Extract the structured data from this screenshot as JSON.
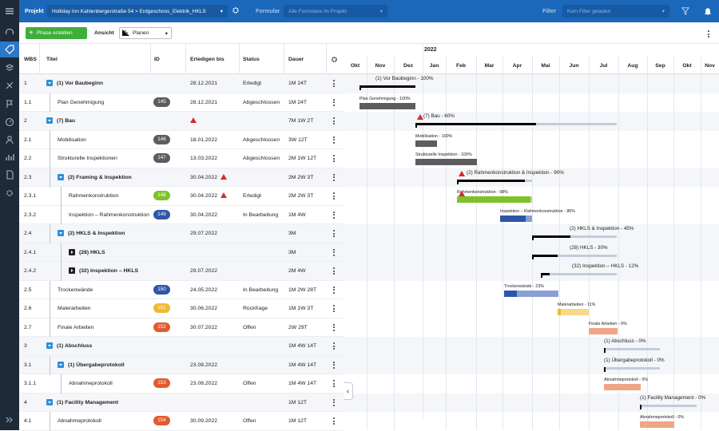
{
  "topbar": {
    "projekt_label": "Projekt",
    "projekt_value": "Holliday Inn Kahlenbergerstraße 54 > Erdgeschoss_Elektrik_HKLS",
    "formular_label": "Formular",
    "formular_placeholder": "Alle Formulare im Projekt",
    "filter_label": "Filter",
    "filter_placeholder": "Kein Filter geladen"
  },
  "toolbar": {
    "add_label": "Phase erstellen",
    "ansicht_label": "Ansicht",
    "view_value": "Planen"
  },
  "table": {
    "headers": {
      "wbs": "WBS",
      "titel": "Titel",
      "id": "ID",
      "erledigen": "Erledigen bis",
      "status": "Status",
      "dauer": "Dauer"
    },
    "rows": [
      {
        "wbs": "1",
        "title": "(1) Vor Baubeginn",
        "id": "",
        "date": "28.12.2021",
        "status": "Erledigt",
        "dauer": "1M 24T"
      },
      {
        "wbs": "1.1",
        "title": "Plan Genehmigung",
        "id": "145",
        "date": "28.12.2021",
        "status": "Abgeschlossen",
        "dauer": "1M 24T"
      },
      {
        "wbs": "2",
        "title": "(7) Bau",
        "id": "",
        "date": "",
        "status": "",
        "dauer": "7M 1W 2T"
      },
      {
        "wbs": "2.1",
        "title": "Mobilisation",
        "id": "146",
        "date": "18.01.2022",
        "status": "Abgeschlossen",
        "dauer": "3W 12T"
      },
      {
        "wbs": "2.2",
        "title": "Strukturelle Inspektionen",
        "id": "147",
        "date": "13.03.2022",
        "status": "Abgeschlossen",
        "dauer": "2M 1W 12T"
      },
      {
        "wbs": "2.3",
        "title": "(2) Framing & Inspektion",
        "id": "",
        "date": "30.04.2022",
        "status": "",
        "dauer": "2M 2W 3T"
      },
      {
        "wbs": "2.3.1",
        "title": "Rahmenkonstruktion",
        "id": "148",
        "date": "30.04.2022",
        "status": "Erledigt",
        "dauer": "2M 2W 3T"
      },
      {
        "wbs": "2.3.2",
        "title": "Inspektion – Rahmenkonstruktion",
        "id": "149",
        "date": "30.04.2022",
        "status": "In Bearbeitung",
        "dauer": "1M 4W"
      },
      {
        "wbs": "2.4",
        "title": "(2) HKLS & Inspektion",
        "id": "",
        "date": "29.07.2022",
        "status": "",
        "dauer": "3M"
      },
      {
        "wbs": "2.4.1",
        "title": "(28) HKLS",
        "id": "",
        "date": "",
        "status": "",
        "dauer": "3M"
      },
      {
        "wbs": "2.4.2",
        "title": "(32) Inspektion – HKLS",
        "id": "",
        "date": "29.07.2022",
        "status": "",
        "dauer": "2M 4W"
      },
      {
        "wbs": "2.5",
        "title": "Trockenwände",
        "id": "150",
        "date": "24.05.2022",
        "status": "In Bearbeitung",
        "dauer": "1M 2W 28T"
      },
      {
        "wbs": "2.6",
        "title": "Malerarbeiten",
        "id": "151",
        "date": "30.06.2022",
        "status": "Rückfrage",
        "dauer": "1M 1W 3T"
      },
      {
        "wbs": "2.7",
        "title": "Finale Arbeiten",
        "id": "152",
        "date": "30.07.2022",
        "status": "Offen",
        "dauer": "2W 29T"
      },
      {
        "wbs": "3",
        "title": "(1) Abschluss",
        "id": "",
        "date": "",
        "status": "",
        "dauer": "1M 4W 14T"
      },
      {
        "wbs": "3.1",
        "title": "(1) Übergabeprotokoll",
        "id": "",
        "date": "23.08.2022",
        "status": "",
        "dauer": "1M 4W 14T"
      },
      {
        "wbs": "3.1.1",
        "title": "Abnahmeprotokoll",
        "id": "153",
        "date": "23.08.2022",
        "status": "Offen",
        "dauer": "1M 4W 14T"
      },
      {
        "wbs": "4",
        "title": "(1) Facility Management",
        "id": "",
        "date": "",
        "status": "",
        "dauer": "1M 12T"
      },
      {
        "wbs": "4.1",
        "title": "Abnahmeprotokoll",
        "id": "154",
        "date": "30.09.2022",
        "status": "Offen",
        "dauer": "1M 12T"
      }
    ]
  },
  "gantt": {
    "year": "2022",
    "months": [
      "Okt",
      "Nov",
      "Dez",
      "Jan",
      "Feb",
      "Mar",
      "Apr",
      "Mai",
      "Jun",
      "Jul",
      "Aug",
      "Sep",
      "Okt",
      "Nov"
    ],
    "labels": [
      "(1) Vor Baubeginn - 100%",
      "Plan Genehmigung - 100%",
      "(7) Bau - 60%",
      "Mobilisation - 100%",
      "Strukturelle Inspektion - 100%",
      "(2) Rahmenkonstruktion & Inspektion - 90%",
      "Rahmenkonstruktion - 98%",
      "Inspektion – Rahmenkonstruktion - 80%",
      "(2) HKLS & Inspektion - 45%",
      "(28) HKLS - 30%",
      "(32) Inspektion – HKLS - 12%",
      "Trockenwände - 23%",
      "Malerarbeiten - 11%",
      "Finale Arbeiten - 0%",
      "(1) Abschluss - 0%",
      "(1) Übergabeprotokoll - 0%",
      "Abnahmeprotokoll - 0%",
      "(1) Facility Management - 0%",
      "Abnahmeprotokoll - 0%"
    ],
    "progress": [
      1.0,
      1.0,
      0.6,
      1.0,
      1.0,
      0.9,
      0.98,
      0.8,
      0.45,
      0.3,
      0.12,
      0.23,
      0.11,
      0,
      0,
      0,
      0,
      0,
      0
    ]
  },
  "colors": {
    "topbar": "#1b67b9",
    "sidebar": "#1f2a38",
    "accent_green": "#3fae3b",
    "badge_145": "#5d5d5d",
    "badge_148": "#7fc228",
    "badge_149": "#2e56a8",
    "badge_150": "#2e56a8",
    "badge_151": "#f0b930",
    "badge_152": "#e35a2e",
    "badge_153": "#e35a2e",
    "badge_154": "#e35a2e"
  }
}
